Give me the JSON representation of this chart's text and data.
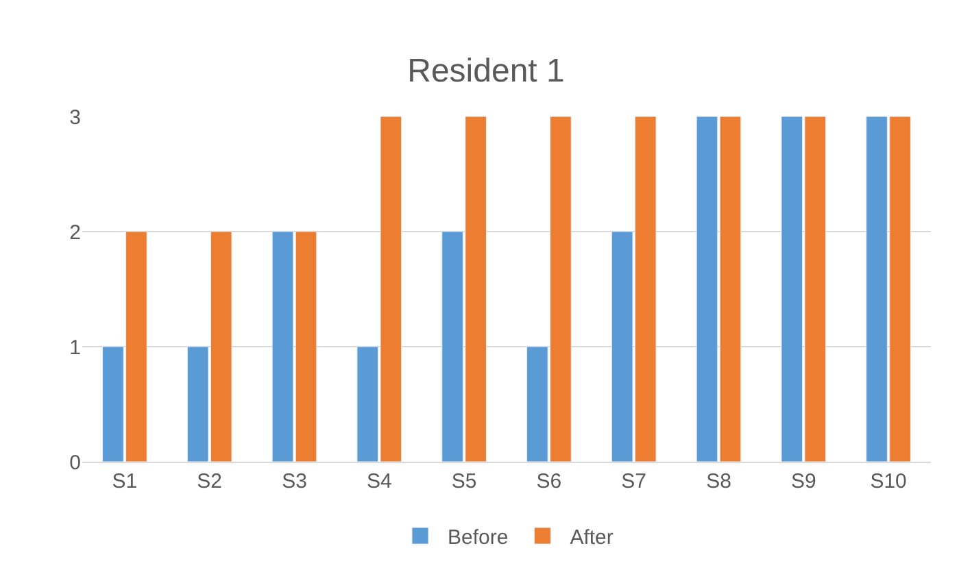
{
  "chart_data": {
    "type": "bar",
    "title": "Resident 1",
    "categories": [
      "S1",
      "S2",
      "S3",
      "S4",
      "S5",
      "S6",
      "S7",
      "S8",
      "S9",
      "S10"
    ],
    "series": [
      {
        "name": "Before",
        "color": "#5b9bd5",
        "values": [
          1,
          1,
          2,
          1,
          2,
          1,
          2,
          3,
          3,
          3
        ]
      },
      {
        "name": "After",
        "color": "#ed7d31",
        "values": [
          2,
          2,
          2,
          3,
          3,
          3,
          3,
          3,
          3,
          3
        ]
      }
    ],
    "ylim": [
      0,
      3
    ],
    "yticks": [
      0,
      1,
      2,
      3
    ],
    "grid": "y",
    "legend": "bottom"
  }
}
